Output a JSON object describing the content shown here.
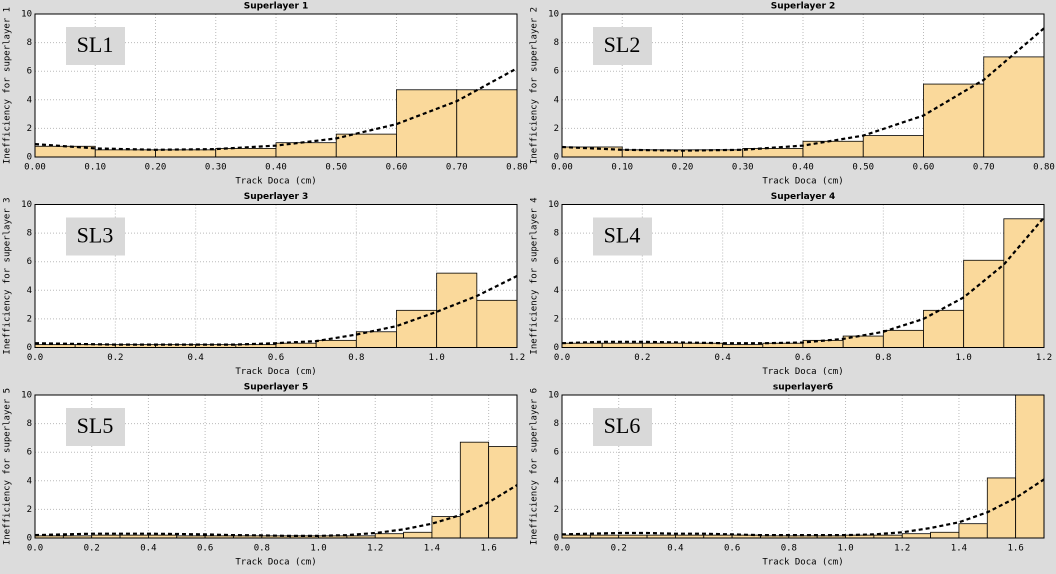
{
  "chart_data": [
    {
      "type": "histogram",
      "title": "Superlayer 1",
      "annotation": "SL1",
      "xlabel": "Track Doca (cm)",
      "ylabel": "Inefficiency for superlayer 1",
      "bins": [
        0,
        0.1,
        0.2,
        0.3,
        0.4,
        0.5,
        0.6,
        0.7,
        0.8
      ],
      "values": [
        0.75,
        0.5,
        0.5,
        0.6,
        1.0,
        1.6,
        4.7,
        4.7
      ],
      "fit": {
        "x": [
          0,
          0.1,
          0.2,
          0.3,
          0.4,
          0.5,
          0.6,
          0.7,
          0.8
        ],
        "y": [
          0.9,
          0.6,
          0.5,
          0.55,
          0.8,
          1.3,
          2.3,
          3.9,
          6.2
        ]
      },
      "color": "#fad99b",
      "xlim": [
        0,
        0.8
      ],
      "ylim": [
        0,
        10
      ],
      "xticks": [
        {
          "value": 0,
          "label": "0.00"
        },
        {
          "value": 0.1,
          "label": "0.10"
        },
        {
          "value": 0.2,
          "label": "0.20"
        },
        {
          "value": 0.3,
          "label": "0.30"
        },
        {
          "value": 0.4,
          "label": "0.40"
        },
        {
          "value": 0.5,
          "label": "0.50"
        },
        {
          "value": 0.6,
          "label": "0.60"
        },
        {
          "value": 0.7,
          "label": "0.70"
        },
        {
          "value": 0.8,
          "label": "0.80"
        }
      ],
      "yticks": [
        0,
        2,
        4,
        6,
        8,
        10
      ],
      "grid": true
    },
    {
      "type": "histogram",
      "title": "Superlayer 2",
      "annotation": "SL2",
      "xlabel": "Track Doca (cm)",
      "ylabel": "Inefficiency for superlayer 2",
      "bins": [
        0,
        0.1,
        0.2,
        0.3,
        0.4,
        0.5,
        0.6,
        0.7,
        0.8
      ],
      "values": [
        0.7,
        0.5,
        0.5,
        0.6,
        1.1,
        1.5,
        5.1,
        7.0
      ],
      "fit": {
        "x": [
          0,
          0.1,
          0.2,
          0.3,
          0.4,
          0.5,
          0.6,
          0.7,
          0.8
        ],
        "y": [
          0.7,
          0.5,
          0.45,
          0.5,
          0.8,
          1.5,
          2.9,
          5.4,
          9.0
        ]
      },
      "color": "#fad99b",
      "xlim": [
        0,
        0.8
      ],
      "ylim": [
        0,
        10
      ],
      "xticks": [
        {
          "value": 0,
          "label": "0.00"
        },
        {
          "value": 0.1,
          "label": "0.10"
        },
        {
          "value": 0.2,
          "label": "0.20"
        },
        {
          "value": 0.3,
          "label": "0.30"
        },
        {
          "value": 0.4,
          "label": "0.40"
        },
        {
          "value": 0.5,
          "label": "0.50"
        },
        {
          "value": 0.6,
          "label": "0.60"
        },
        {
          "value": 0.7,
          "label": "0.70"
        },
        {
          "value": 0.8,
          "label": "0.80"
        }
      ],
      "yticks": [
        0,
        2,
        4,
        6,
        8,
        10
      ],
      "grid": true
    },
    {
      "type": "histogram",
      "title": "Superlayer 3",
      "annotation": "SL3",
      "xlabel": "Track Doca (cm)",
      "ylabel": "Inefficiency for superlayer 3",
      "bins": [
        0,
        0.1,
        0.2,
        0.3,
        0.4,
        0.5,
        0.6,
        0.7,
        0.8,
        0.9,
        1.0,
        1.1,
        1.2
      ],
      "values": [
        0.2,
        0.2,
        0.2,
        0.2,
        0.2,
        0.2,
        0.3,
        0.5,
        1.1,
        2.6,
        5.2,
        3.3
      ],
      "fit": {
        "x": [
          0,
          0.1,
          0.2,
          0.3,
          0.4,
          0.5,
          0.6,
          0.7,
          0.8,
          0.9,
          1.0,
          1.1,
          1.2
        ],
        "y": [
          0.3,
          0.25,
          0.2,
          0.2,
          0.2,
          0.2,
          0.3,
          0.45,
          0.9,
          1.5,
          2.5,
          3.6,
          5.0
        ]
      },
      "color": "#fad99b",
      "xlim": [
        0,
        1.2
      ],
      "ylim": [
        0,
        10
      ],
      "xticks": [
        {
          "value": 0,
          "label": "0.0"
        },
        0.2,
        0.4,
        0.6,
        0.8,
        {
          "value": 1,
          "label": "1.0"
        },
        1.2
      ],
      "yticks": [
        0,
        2,
        4,
        6,
        8,
        10
      ],
      "grid": true
    },
    {
      "type": "histogram",
      "title": "Superlayer 4",
      "annotation": "SL4",
      "xlabel": "Track Doca (cm)",
      "ylabel": "Inefficiency for superlayer 4",
      "bins": [
        0,
        0.1,
        0.2,
        0.3,
        0.4,
        0.5,
        0.6,
        0.7,
        0.8,
        0.9,
        1.0,
        1.1,
        1.2
      ],
      "values": [
        0.3,
        0.3,
        0.3,
        0.3,
        0.2,
        0.3,
        0.5,
        0.8,
        1.2,
        2.6,
        6.1,
        9.0
      ],
      "fit": {
        "x": [
          0,
          0.1,
          0.2,
          0.3,
          0.4,
          0.5,
          0.6,
          0.7,
          0.8,
          0.9,
          1.0,
          1.1,
          1.2
        ],
        "y": [
          0.3,
          0.4,
          0.4,
          0.35,
          0.3,
          0.3,
          0.35,
          0.6,
          1.1,
          2.0,
          3.5,
          5.8,
          9.1
        ]
      },
      "color": "#fad99b",
      "xlim": [
        0,
        1.2
      ],
      "ylim": [
        0,
        10
      ],
      "xticks": [
        {
          "value": 0,
          "label": "0.0"
        },
        0.2,
        0.4,
        0.6,
        0.8,
        {
          "value": 1,
          "label": "1.0"
        },
        1.2
      ],
      "yticks": [
        0,
        2,
        4,
        6,
        8,
        10
      ],
      "grid": true
    },
    {
      "type": "histogram",
      "title": "Superlayer 5",
      "annotation": "SL5",
      "xlabel": "Track Doca (cm)",
      "ylabel": "Inefficiency for superlayer 5",
      "bins": [
        0,
        0.1,
        0.2,
        0.3,
        0.4,
        0.5,
        0.6,
        0.7,
        0.8,
        0.9,
        1.0,
        1.1,
        1.2,
        1.3,
        1.4,
        1.5,
        1.6,
        1.7
      ],
      "values": [
        0.15,
        0.15,
        0.2,
        0.2,
        0.2,
        0.15,
        0.15,
        0.15,
        0.15,
        0.15,
        0.15,
        0.15,
        0.3,
        0.4,
        1.5,
        6.7,
        6.4
      ],
      "fit": {
        "x": [
          0,
          0.1,
          0.2,
          0.3,
          0.4,
          0.5,
          0.6,
          0.7,
          0.8,
          0.9,
          1.0,
          1.1,
          1.2,
          1.3,
          1.4,
          1.5,
          1.6,
          1.7
        ],
        "y": [
          0.2,
          0.25,
          0.3,
          0.3,
          0.3,
          0.28,
          0.25,
          0.2,
          0.18,
          0.15,
          0.15,
          0.2,
          0.35,
          0.6,
          1.0,
          1.6,
          2.5,
          3.7
        ]
      },
      "color": "#fad99b",
      "xlim": [
        0,
        1.7
      ],
      "ylim": [
        0,
        10
      ],
      "xticks": [
        {
          "value": 0,
          "label": "0.0"
        },
        0.2,
        0.4,
        0.6,
        0.8,
        {
          "value": 1,
          "label": "1.0"
        },
        1.2,
        1.4,
        1.6
      ],
      "yticks": [
        0,
        2,
        4,
        6,
        8,
        10
      ],
      "grid": true
    },
    {
      "type": "histogram",
      "title": "superlayer6",
      "annotation": "SL6",
      "xlabel": "Track Doca (cm)",
      "ylabel": "Inefficiency for superlayer 6",
      "bins": [
        0,
        0.1,
        0.2,
        0.3,
        0.4,
        0.5,
        0.6,
        0.7,
        0.8,
        0.9,
        1.0,
        1.1,
        1.2,
        1.3,
        1.4,
        1.5,
        1.6,
        1.7
      ],
      "values": [
        0.2,
        0.2,
        0.2,
        0.2,
        0.2,
        0.2,
        0.2,
        0.15,
        0.15,
        0.15,
        0.2,
        0.2,
        0.3,
        0.4,
        1.0,
        4.2,
        10
      ],
      "fit": {
        "x": [
          0,
          0.1,
          0.2,
          0.3,
          0.4,
          0.5,
          0.6,
          0.7,
          0.8,
          0.9,
          1.0,
          1.1,
          1.2,
          1.3,
          1.4,
          1.5,
          1.6,
          1.7
        ],
        "y": [
          0.25,
          0.3,
          0.35,
          0.35,
          0.3,
          0.3,
          0.25,
          0.2,
          0.2,
          0.2,
          0.2,
          0.25,
          0.4,
          0.7,
          1.1,
          1.8,
          2.8,
          4.1
        ]
      },
      "color": "#fad99b",
      "xlim": [
        0,
        1.7
      ],
      "ylim": [
        0,
        10
      ],
      "xticks": [
        {
          "value": 0,
          "label": "0.0"
        },
        0.2,
        0.4,
        0.6,
        0.8,
        {
          "value": 1,
          "label": "1.0"
        },
        1.2,
        1.4,
        1.6
      ],
      "yticks": [
        0,
        2,
        4,
        6,
        8,
        10
      ],
      "grid": true
    }
  ]
}
